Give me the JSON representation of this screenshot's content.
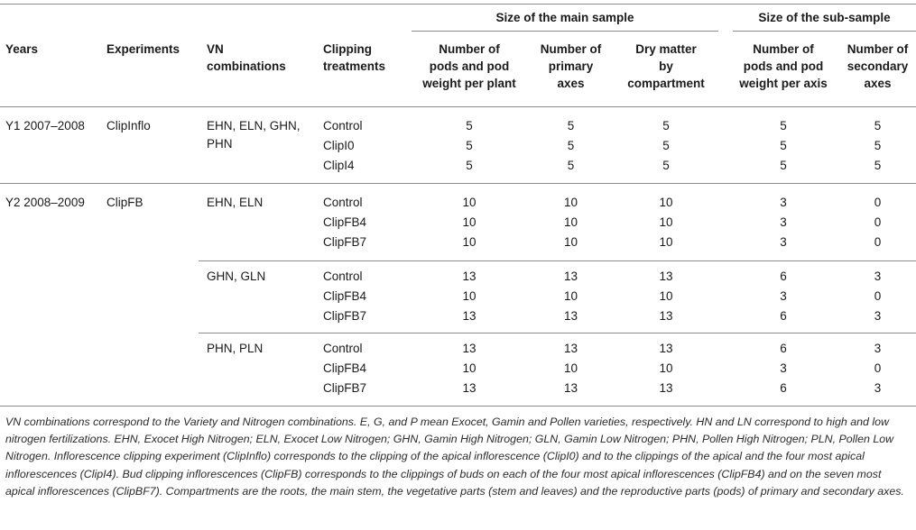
{
  "headers": {
    "group_main": "Size of the main sample",
    "group_sub": "Size of the sub-sample",
    "years": "Years",
    "experiments": "Experiments",
    "vn_line1": "VN",
    "vn_line2": "combinations",
    "clip_line1": "Clipping",
    "clip_line2": "treatments",
    "pods_main": [
      "Number of",
      "pods and pod",
      "weight per plant"
    ],
    "primary": [
      "Number of",
      "primary",
      "axes"
    ],
    "dry": [
      "Dry matter",
      "by",
      "compartment"
    ],
    "pods_sub": [
      "Number of",
      "pods and pod",
      "weight per axis"
    ],
    "secondary": [
      "Number of",
      "secondary",
      "axes"
    ]
  },
  "years": [
    {
      "year": "Y1 2007–2008",
      "experiment": "ClipInflo",
      "groups": [
        {
          "vn": [
            "EHN, ELN, GHN,",
            "PHN"
          ],
          "rows": [
            {
              "treatment": "Control",
              "v": [
                "5",
                "5",
                "5",
                "5",
                "5"
              ]
            },
            {
              "treatment": "ClipI0",
              "v": [
                "5",
                "5",
                "5",
                "5",
                "5"
              ]
            },
            {
              "treatment": "ClipI4",
              "v": [
                "5",
                "5",
                "5",
                "5",
                "5"
              ]
            }
          ]
        }
      ]
    },
    {
      "year": "Y2 2008–2009",
      "experiment": "ClipFB",
      "groups": [
        {
          "vn": [
            "EHN, ELN"
          ],
          "rows": [
            {
              "treatment": "Control",
              "v": [
                "10",
                "10",
                "10",
                "3",
                "0"
              ]
            },
            {
              "treatment": "ClipFB4",
              "v": [
                "10",
                "10",
                "10",
                "3",
                "0"
              ]
            },
            {
              "treatment": "ClipFB7",
              "v": [
                "10",
                "10",
                "10",
                "3",
                "0"
              ]
            }
          ]
        },
        {
          "vn": [
            "GHN, GLN"
          ],
          "rows": [
            {
              "treatment": "Control",
              "v": [
                "13",
                "13",
                "13",
                "6",
                "3"
              ]
            },
            {
              "treatment": "ClipFB4",
              "v": [
                "10",
                "10",
                "10",
                "3",
                "0"
              ]
            },
            {
              "treatment": "ClipFB7",
              "v": [
                "13",
                "13",
                "13",
                "6",
                "3"
              ]
            }
          ]
        },
        {
          "vn": [
            "PHN, PLN"
          ],
          "rows": [
            {
              "treatment": "Control",
              "v": [
                "13",
                "13",
                "13",
                "6",
                "3"
              ]
            },
            {
              "treatment": "ClipFB4",
              "v": [
                "10",
                "10",
                "10",
                "3",
                "0"
              ]
            },
            {
              "treatment": "ClipFB7",
              "v": [
                "13",
                "13",
                "13",
                "6",
                "3"
              ]
            }
          ]
        }
      ]
    }
  ],
  "footnote": "VN combinations correspond to the Variety and Nitrogen combinations. E, G, and P mean Exocet, Gamin and Pollen varieties, respectively. HN and LN correspond to high and low nitrogen fertilizations. EHN, Exocet High Nitrogen; ELN, Exocet Low Nitrogen; GHN, Gamin High Nitrogen; GLN, Gamin Low Nitrogen; PHN, Pollen High Nitrogen; PLN, Pollen Low Nitrogen. Inflorescence clipping experiment (ClipInflo) corresponds to the clipping of the apical inflorescence (ClipI0) and to the clippings of the apical and the four most apical inflorescences (ClipI4). Bud clipping inflorescences (ClipFB) corresponds to the clippings of buds on each of the four most apical inflorescences (ClipFB4) and on the seven most apical inflorescences (ClipBF7). Compartments are the roots, the main stem, the vegetative parts (stem and leaves) and the reproductive parts (pods) of primary and secondary axes."
}
